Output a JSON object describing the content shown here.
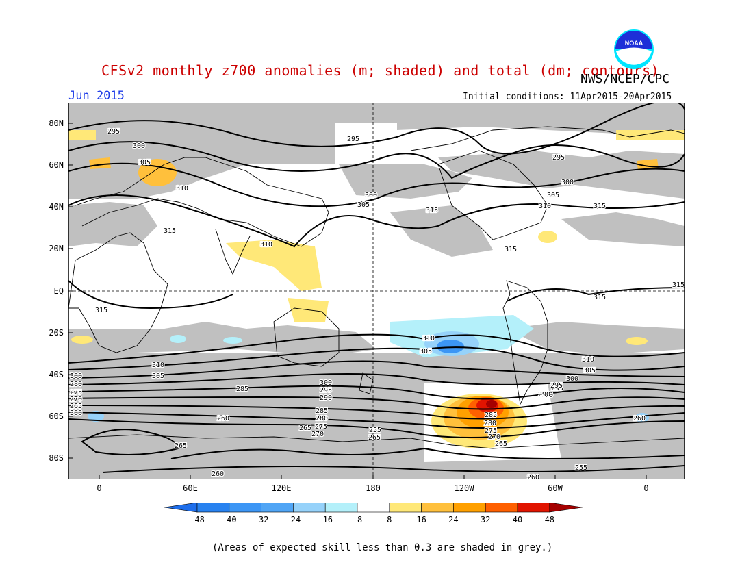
{
  "header": {
    "title": "CFSv2 monthly z700 anomalies (m; shaded) and total (dm; contours)",
    "org": "NWS/NCEP/CPC",
    "period": "Jun 2015",
    "initial_conditions": "Initial conditions: 11Apr2015-20Apr2015",
    "logo_text": "NOAA"
  },
  "map": {
    "lat_labels": [
      "80N",
      "60N",
      "40N",
      "20N",
      "EQ",
      "20S",
      "40S",
      "60S",
      "80S"
    ],
    "lon_labels": [
      "0",
      "60E",
      "120E",
      "180",
      "120W",
      "60W",
      "0"
    ],
    "contour_labels": [
      "295",
      "295",
      "300",
      "305",
      "310",
      "315",
      "310",
      "300",
      "305",
      "315",
      "295",
      "300",
      "305",
      "310",
      "315",
      "315",
      "315",
      "315",
      "315",
      "310",
      "305",
      "310",
      "305",
      "310",
      "300",
      "305",
      "300",
      "295",
      "290",
      "285",
      "280",
      "275",
      "270",
      "265",
      "300",
      "295",
      "290",
      "285",
      "280",
      "275",
      "270",
      "265",
      "260",
      "265",
      "255",
      "265",
      "260",
      "285",
      "280",
      "275",
      "270",
      "265",
      "260",
      "255",
      "295",
      "300",
      "290",
      "260"
    ],
    "land_color": "#000000",
    "grey_skill_color": "#c0c0c0"
  },
  "colorbar": {
    "labels": [
      "-48",
      "-40",
      "-32",
      "-24",
      "-16",
      "-8",
      "8",
      "16",
      "24",
      "32",
      "40",
      "48"
    ],
    "colors": [
      "#1e6eeb",
      "#2882f0",
      "#3c96f5",
      "#50a5f5",
      "#96d2fa",
      "#b4f0fa",
      "#ffffff",
      "#ffe878",
      "#ffc03c",
      "#ffa000",
      "#ff6000",
      "#e11400",
      "#a50000"
    ]
  },
  "footnote": "(Areas of expected skill less than 0.3 are shaded in grey.)"
}
